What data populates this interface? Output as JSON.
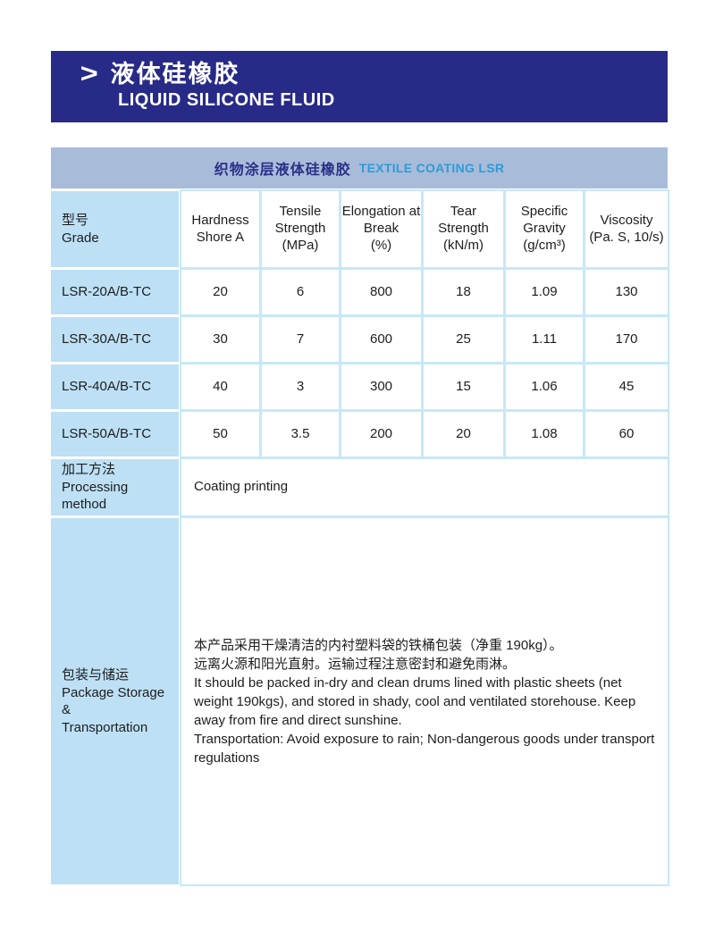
{
  "banner": {
    "chevron": ">",
    "title_zh": "液体硅橡胶",
    "title_en": "LIQUID SILICONE FLUID"
  },
  "product_table": {
    "caption": {
      "zh": "织物涂层液体硅橡胶",
      "en": "TEXTILE COATING LSR"
    },
    "headers": {
      "grade": "型号\nGrade",
      "hardness": "Hardness\nShore A",
      "tensile": "Tensile\nStrength\n(MPa)",
      "elongation": "Elongation at\nBreak\n(%)",
      "tear": "Tear\nStrength\n(kN/m)",
      "gravity": "Specific\nGravity\n(g/cm³)",
      "viscosity": "Viscosity\n(Pa. S, 10/s)"
    },
    "rows": [
      {
        "grade": "LSR-20A/B-TC",
        "hardness": "20",
        "tensile": "6",
        "elongation": "800",
        "tear": "18",
        "gravity": "1.09",
        "viscosity": "130"
      },
      {
        "grade": "LSR-30A/B-TC",
        "hardness": "30",
        "tensile": "7",
        "elongation": "600",
        "tear": "25",
        "gravity": "1.11",
        "viscosity": "170"
      },
      {
        "grade": "LSR-40A/B-TC",
        "hardness": "40",
        "tensile": "3",
        "elongation": "300",
        "tear": "15",
        "gravity": "1.06",
        "viscosity": "45"
      },
      {
        "grade": "LSR-50A/B-TC",
        "hardness": "50",
        "tensile": "3.5",
        "elongation": "200",
        "tear": "20",
        "gravity": "1.08",
        "viscosity": "60"
      }
    ],
    "processing": {
      "label": "加工方法\nProcessing method",
      "value": "Coating printing"
    },
    "package": {
      "label": "包装与储运\nPackage Storage &\nTransportation",
      "text": "本产品采用干燥清洁的内衬塑料袋的铁桶包装（净重 190kg）。\n远离火源和阳光直射。运输过程注意密封和避免雨淋。\nIt should be packed in-dry and clean drums lined with plastic sheets (net weight 190kgs), and stored in shady, cool and ventilated storehouse. Keep away from fire and direct sunshine.\nTransportation: Avoid exposure to rain; Non-dangerous goods under transport regulations"
    }
  },
  "colors": {
    "banner_bg": "#272a86",
    "banner_text": "#ffffff",
    "caption_bg": "#a8bcda",
    "caption_zh_text": "#2a2f88",
    "caption_en_text": "#2d9bd8",
    "label_cell_bg": "#bde0f5",
    "grid_line": "#c7e8f8",
    "body_text": "#1d1d1d"
  }
}
